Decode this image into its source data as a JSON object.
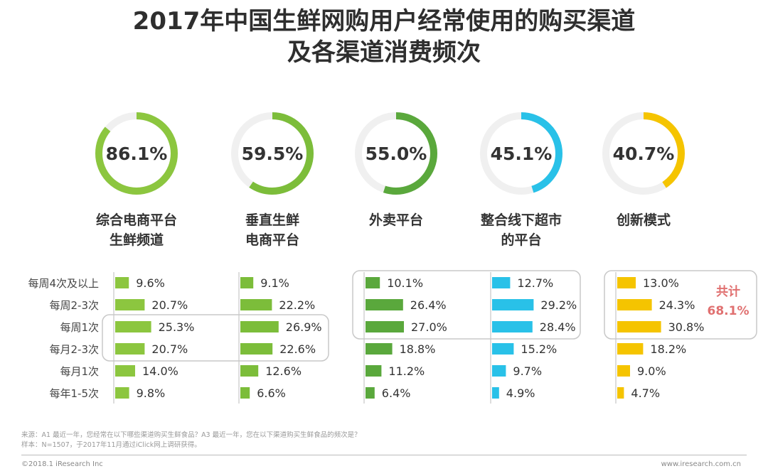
{
  "title": {
    "line1": "2017年中国生鲜网购用户经常使用的购买渠道",
    "line2": "及各渠道消费频次"
  },
  "chart_data": {
    "type": "bar",
    "title": "2017年中国生鲜网购用户经常使用的购买渠道及各渠道消费频次",
    "categories": [
      "每周4次及以上",
      "每周2-3次",
      "每周1次",
      "每月2-3次",
      "每月1次",
      "每年1-5次"
    ],
    "series": [
      {
        "name": "综合电商平台生鲜频道",
        "label_lines": [
          "综合电商平台",
          "生鲜频道"
        ],
        "usage": 86.1,
        "usage_label": "86.1%",
        "color": "#8cc63f",
        "values": [
          9.6,
          20.7,
          25.3,
          20.7,
          14.0,
          9.8
        ],
        "labels": [
          "9.6%",
          "20.7%",
          "25.3%",
          "20.7%",
          "14.0%",
          "9.8%"
        ]
      },
      {
        "name": "垂直生鲜电商平台",
        "label_lines": [
          "垂直生鲜",
          "电商平台"
        ],
        "usage": 59.5,
        "usage_label": "59.5%",
        "color": "#7cbd3a",
        "values": [
          9.1,
          22.2,
          26.9,
          22.6,
          12.6,
          6.6
        ],
        "labels": [
          "9.1%",
          "22.2%",
          "26.9%",
          "22.6%",
          "12.6%",
          "6.6%"
        ]
      },
      {
        "name": "外卖平台",
        "label_lines": [
          "外卖平台"
        ],
        "usage": 55.0,
        "usage_label": "55.0%",
        "color": "#5aa83c",
        "values": [
          10.1,
          26.4,
          27.0,
          18.8,
          11.2,
          6.4
        ],
        "labels": [
          "10.1%",
          "26.4%",
          "27.0%",
          "18.8%",
          "11.2%",
          "6.4%"
        ]
      },
      {
        "name": "整合线下超市的平台",
        "label_lines": [
          "整合线下超市",
          "的平台"
        ],
        "usage": 45.1,
        "usage_label": "45.1%",
        "color": "#29c1e8",
        "values": [
          12.7,
          29.2,
          28.4,
          15.2,
          9.7,
          4.9
        ],
        "labels": [
          "12.7%",
          "29.2%",
          "28.4%",
          "15.2%",
          "9.7%",
          "4.9%"
        ]
      },
      {
        "name": "创新模式",
        "label_lines": [
          "创新模式"
        ],
        "usage": 40.7,
        "usage_label": "40.7%",
        "color": "#f5c400",
        "values": [
          13.0,
          24.3,
          30.8,
          18.2,
          9.0,
          4.7
        ],
        "labels": [
          "13.0%",
          "24.3%",
          "30.8%",
          "18.2%",
          "9.0%",
          "4.7%"
        ]
      }
    ],
    "annotations": {
      "total_line1": "共计",
      "total_line2": "68.1%",
      "total_color": "#e07070"
    },
    "highlight_boxes": [
      {
        "rows": [
          2,
          3
        ],
        "series": [
          0,
          1
        ]
      },
      {
        "rows": [
          0,
          2
        ],
        "series": [
          2,
          3
        ]
      },
      {
        "rows": [
          0,
          2
        ],
        "series": [
          4
        ]
      }
    ],
    "xlabel": "",
    "ylabel": ""
  },
  "footer": {
    "note_line1": "来源：A1 最近一年，您经常在以下哪些渠道购买生鲜食品？A3 最近一年，您在以下渠道购买生鲜食品的频次是？",
    "note_line2": "样本：N=1507，于2017年11月通过iClick网上调研获得。",
    "copyright": "©2018.1 iResearch Inc",
    "website": "www.iresearch.com.cn"
  },
  "colors": {
    "ring_track": "#f0f0f0",
    "text": "#333333",
    "frame": "#c8c8c8"
  }
}
